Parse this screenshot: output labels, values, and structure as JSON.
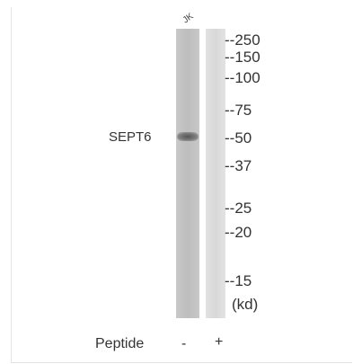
{
  "sample_label": "JK",
  "target_label": "SEPT6",
  "markers": [
    "--250",
    "--150",
    "--100",
    "--75",
    "--50",
    "--37",
    "--25",
    "--20",
    "--15"
  ],
  "unit_label": "(kd)",
  "peptide": {
    "label": "Peptide",
    "lanes": [
      "-",
      "+"
    ]
  }
}
